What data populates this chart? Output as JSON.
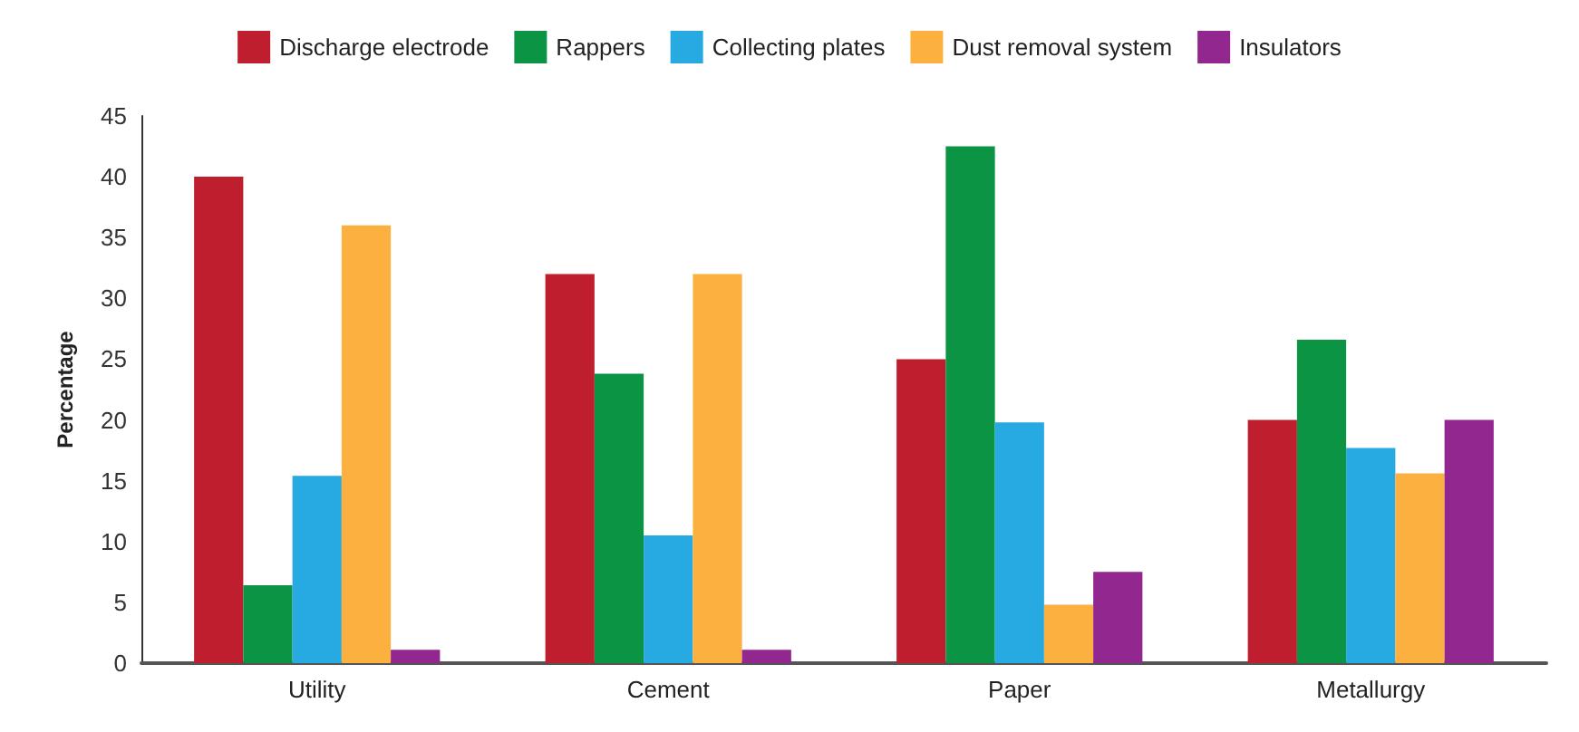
{
  "chart_data": {
    "type": "bar",
    "ylabel": "Percentage",
    "categories": [
      "Utility",
      "Cement",
      "Paper",
      "Metallurgy"
    ],
    "ylim": [
      0,
      45
    ],
    "yticks": [
      0,
      5,
      10,
      15,
      20,
      25,
      30,
      35,
      40,
      45
    ],
    "grid": false,
    "legend": "top",
    "series": [
      {
        "name": "Discharge electrode",
        "color": "#be1e2d",
        "values": [
          40,
          32,
          25,
          20
        ]
      },
      {
        "name": "Rappers",
        "color": "#0b9444",
        "values": [
          6.4,
          23.8,
          42.5,
          26.6
        ]
      },
      {
        "name": "Collecting plates",
        "color": "#27aae1",
        "values": [
          15.4,
          10.5,
          19.8,
          17.7
        ]
      },
      {
        "name": "Dust removal system",
        "color": "#fbb040",
        "values": [
          36,
          32,
          4.8,
          15.6
        ]
      },
      {
        "name": "Insulators",
        "color": "#92278f",
        "values": [
          1.1,
          1.1,
          7.5,
          20
        ]
      }
    ]
  }
}
